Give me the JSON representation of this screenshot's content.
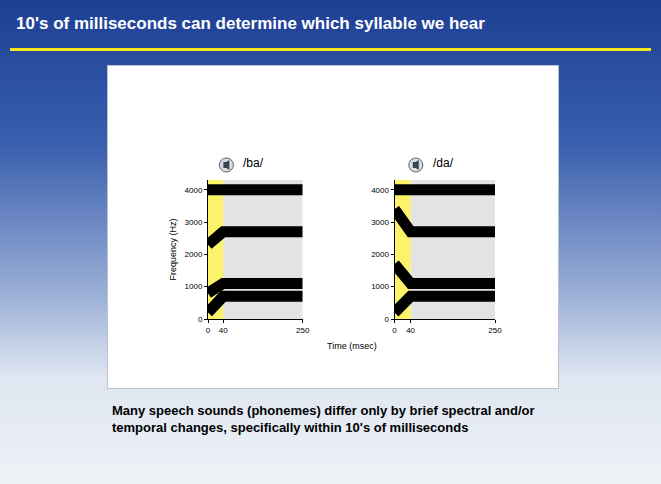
{
  "header": {
    "title": "10's of milliseconds can determine which syllable we hear"
  },
  "caption": "Many speech sounds (phonemes) differ only by brief spectral and/or temporal changes, specifically within 10's of milliseconds",
  "x_label": "Time (msec)",
  "chart_data": [
    {
      "type": "line",
      "title": "/ba/",
      "y_label": "Frequency (Hz)",
      "x": [
        0,
        10,
        20,
        30,
        40,
        250
      ],
      "series": [
        {
          "color": "#000000",
          "values": [
            200,
            330,
            460,
            580,
            700,
            700
          ]
        },
        {
          "color": "#000000",
          "values": [
            800,
            880,
            960,
            1030,
            1100,
            1100
          ]
        },
        {
          "color": "#000000",
          "values": [
            2300,
            2400,
            2500,
            2600,
            2700,
            2700
          ]
        },
        {
          "color": "#000000",
          "values": [
            4000,
            4000,
            4000,
            4000,
            4000,
            4000
          ]
        }
      ],
      "highlight": [
        0,
        40
      ],
      "shade": [
        40,
        250
      ],
      "xlim": [
        0,
        250
      ],
      "xticks": [
        0,
        40,
        250
      ],
      "ylim": [
        0,
        4300
      ],
      "yticks": [
        0,
        1000,
        2000,
        3000,
        4000
      ]
    },
    {
      "type": "line",
      "title": "/da/",
      "x": [
        0,
        10,
        20,
        30,
        40,
        250
      ],
      "series": [
        {
          "color": "#000000",
          "values": [
            200,
            330,
            460,
            580,
            700,
            700
          ]
        },
        {
          "color": "#000000",
          "values": [
            1700,
            1550,
            1400,
            1250,
            1100,
            1100
          ]
        },
        {
          "color": "#000000",
          "values": [
            3400,
            3220,
            3050,
            2870,
            2700,
            2700
          ]
        },
        {
          "color": "#000000",
          "values": [
            4000,
            4000,
            4000,
            4000,
            4000,
            4000
          ]
        }
      ],
      "highlight": [
        0,
        40
      ],
      "shade": [
        40,
        250
      ],
      "xlim": [
        0,
        250
      ],
      "xticks": [
        0,
        40,
        250
      ],
      "ylim": [
        0,
        4300
      ],
      "yticks": [
        0,
        1000,
        2000,
        3000,
        4000
      ]
    }
  ]
}
